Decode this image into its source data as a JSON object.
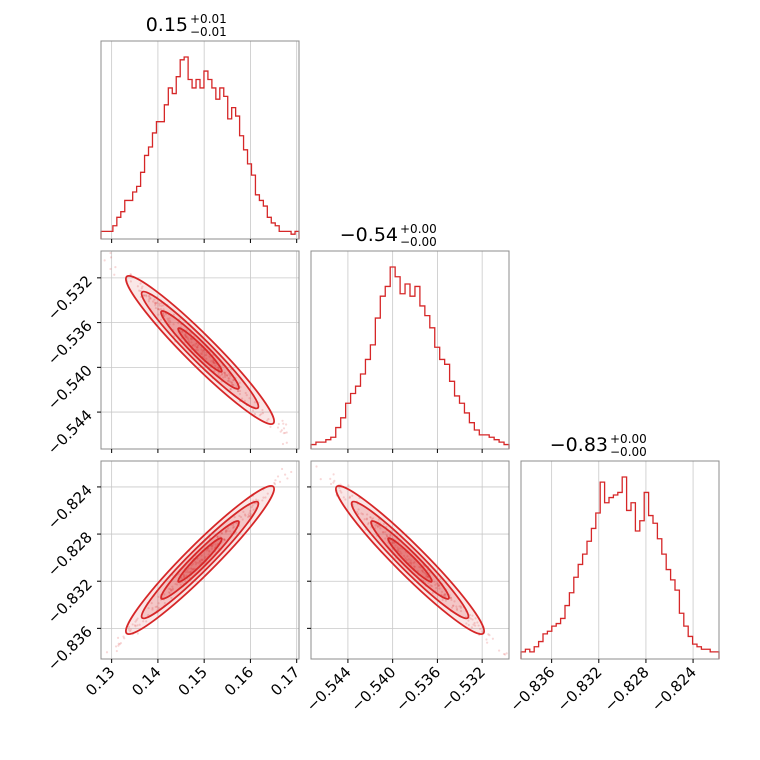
{
  "chart_data": {
    "type": "corner",
    "color": "#d62728",
    "parameters": [
      {
        "median": "0.15",
        "plus": "+0.01",
        "minus": "−0.01",
        "range": [
          0.1277,
          0.1705
        ],
        "ticks": [
          0.13,
          0.14,
          0.15,
          0.16,
          0.17
        ],
        "tick_labels": [
          "0.13",
          "0.14",
          "0.15",
          "0.16",
          "0.17"
        ]
      },
      {
        "median": "−0.54",
        "plus": "+0.00",
        "minus": "−0.00",
        "range": [
          -0.5473,
          -0.5296
        ],
        "ticks": [
          -0.544,
          -0.54,
          -0.536,
          -0.532
        ],
        "tick_labels": [
          "−0.544",
          "−0.540",
          "−0.536",
          "−0.532"
        ]
      },
      {
        "median": "−0.83",
        "plus": "+0.00",
        "minus": "−0.00",
        "range": [
          -0.8386,
          -0.8218
        ],
        "ticks": [
          -0.836,
          -0.832,
          -0.828,
          -0.824
        ],
        "tick_labels": [
          "−0.836",
          "−0.832",
          "−0.828",
          "−0.824"
        ]
      }
    ],
    "histograms": [
      [
        2,
        2,
        2,
        4,
        7,
        9,
        13,
        13,
        16,
        18,
        23,
        29,
        32,
        37,
        41,
        41,
        47,
        53,
        51,
        57,
        63,
        64,
        56,
        53,
        56,
        53,
        59,
        56,
        53,
        49,
        53,
        50,
        42,
        46,
        43,
        36,
        31,
        26,
        22,
        15,
        13,
        11,
        7,
        5,
        4,
        2,
        2,
        2,
        1,
        2
      ],
      [
        1,
        2,
        2,
        3,
        4,
        8,
        12,
        18,
        22,
        25,
        30,
        36,
        42,
        53,
        62,
        66,
        74,
        70,
        63,
        67,
        62,
        66,
        58,
        54,
        49,
        41,
        36,
        34,
        27,
        21,
        18,
        14,
        10,
        7,
        5,
        5,
        4,
        3,
        2,
        1
      ],
      [
        2,
        3,
        2,
        4,
        6,
        9,
        10,
        12,
        13,
        15,
        20,
        25,
        31,
        36,
        40,
        45,
        50,
        56,
        68,
        60,
        62,
        63,
        64,
        70,
        57,
        60,
        49,
        53,
        64,
        55,
        52,
        46,
        40,
        34,
        30,
        26,
        17,
        12,
        8,
        5,
        4,
        3,
        3,
        2,
        2
      ]
    ],
    "correlations": {
      "1_0": -0.965,
      "2_0": 0.985,
      "2_1": -0.99
    }
  }
}
